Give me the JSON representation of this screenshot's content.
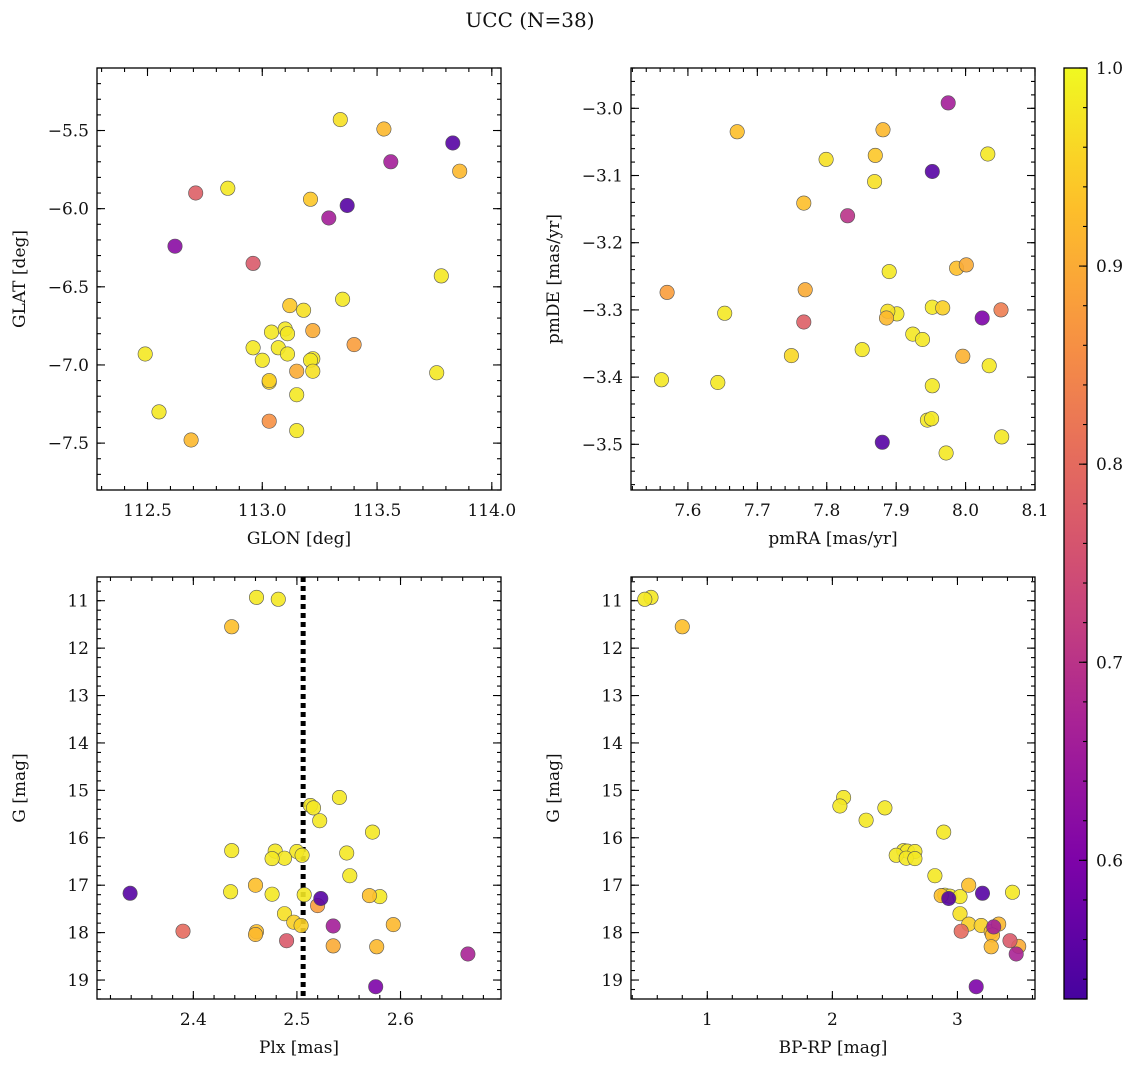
{
  "chart_data": {
    "type": "scatter",
    "title": "UCC (N=38)",
    "colorbar": {
      "range": [
        0.53,
        1.0
      ],
      "ticks": [
        "0.6",
        "0.7",
        "0.8",
        "0.9",
        "1.0"
      ],
      "tick_values": [
        0.6,
        0.7,
        0.8,
        0.9,
        1.0
      ],
      "colormap": "plasma",
      "placement": "right"
    },
    "panels": [
      {
        "id": "glon-glat",
        "xlabel": "GLON [deg]",
        "ylabel": "GLAT [deg]",
        "xlim": [
          112.28,
          114.04
        ],
        "ylim": [
          -7.8,
          -5.1
        ],
        "y_inverted": false,
        "xticks": [
          112.5,
          113.0,
          113.5,
          114.0
        ],
        "xtick_labels": [
          "112.5",
          "113.0",
          "113.5",
          "114.0"
        ],
        "yticks": [
          -7.5,
          -7.0,
          -6.5,
          -6.0,
          -5.5
        ],
        "ytick_labels": [
          "−7.5",
          "−7.0",
          "−6.5",
          "−6.0",
          "−5.5"
        ],
        "points": [
          {
            "x": 113.34,
            "y": -5.43,
            "c": 0.97
          },
          {
            "x": 113.53,
            "y": -5.49,
            "c": 0.92
          },
          {
            "x": 113.83,
            "y": -5.58,
            "c": 0.55
          },
          {
            "x": 113.56,
            "y": -5.7,
            "c": 0.66
          },
          {
            "x": 113.86,
            "y": -5.76,
            "c": 0.92
          },
          {
            "x": 112.85,
            "y": -5.87,
            "c": 0.98
          },
          {
            "x": 112.71,
            "y": -5.9,
            "c": 0.78
          },
          {
            "x": 113.21,
            "y": -5.94,
            "c": 0.94
          },
          {
            "x": 113.37,
            "y": -5.98,
            "c": 0.55
          },
          {
            "x": 113.29,
            "y": -6.06,
            "c": 0.66
          },
          {
            "x": 112.62,
            "y": -6.24,
            "c": 0.62
          },
          {
            "x": 112.96,
            "y": -6.35,
            "c": 0.77
          },
          {
            "x": 113.78,
            "y": -6.43,
            "c": 0.98
          },
          {
            "x": 113.35,
            "y": -6.58,
            "c": 0.98
          },
          {
            "x": 113.12,
            "y": -6.62,
            "c": 0.94
          },
          {
            "x": 113.18,
            "y": -6.65,
            "c": 0.97
          },
          {
            "x": 113.04,
            "y": -6.79,
            "c": 0.98
          },
          {
            "x": 113.1,
            "y": -6.77,
            "c": 0.98
          },
          {
            "x": 113.11,
            "y": -6.8,
            "c": 0.98
          },
          {
            "x": 113.22,
            "y": -6.78,
            "c": 0.9
          },
          {
            "x": 113.4,
            "y": -6.87,
            "c": 0.88
          },
          {
            "x": 112.96,
            "y": -6.89,
            "c": 0.98
          },
          {
            "x": 113.07,
            "y": -6.89,
            "c": 0.98
          },
          {
            "x": 112.49,
            "y": -6.93,
            "c": 0.98
          },
          {
            "x": 113.11,
            "y": -6.93,
            "c": 0.98
          },
          {
            "x": 113.22,
            "y": -6.96,
            "c": 0.98
          },
          {
            "x": 113.21,
            "y": -6.97,
            "c": 0.98
          },
          {
            "x": 113.0,
            "y": -6.97,
            "c": 0.98
          },
          {
            "x": 113.15,
            "y": -7.04,
            "c": 0.9
          },
          {
            "x": 113.22,
            "y": -7.04,
            "c": 0.97
          },
          {
            "x": 113.76,
            "y": -7.05,
            "c": 0.98
          },
          {
            "x": 113.03,
            "y": -7.11,
            "c": 0.96
          },
          {
            "x": 113.03,
            "y": -7.1,
            "c": 0.95
          },
          {
            "x": 113.15,
            "y": -7.19,
            "c": 0.98
          },
          {
            "x": 112.55,
            "y": -7.3,
            "c": 0.98
          },
          {
            "x": 113.03,
            "y": -7.36,
            "c": 0.86
          },
          {
            "x": 113.15,
            "y": -7.42,
            "c": 0.98
          },
          {
            "x": 112.69,
            "y": -7.48,
            "c": 0.92
          }
        ]
      },
      {
        "id": "pmra-pmde",
        "xlabel": "pmRA [mas/yr]",
        "ylabel": "pmDE [mas/yr]",
        "xlim": [
          7.518,
          8.1
        ],
        "ylim": [
          -3.568,
          -2.94
        ],
        "y_inverted": false,
        "xticks": [
          7.6,
          7.7,
          7.8,
          7.9,
          8.0,
          8.1
        ],
        "xtick_labels": [
          "7.6",
          "7.7",
          "7.8",
          "7.9",
          "8.0",
          "8.1"
        ],
        "yticks": [
          -3.5,
          -3.4,
          -3.3,
          -3.2,
          -3.1,
          -3.0
        ],
        "ytick_labels": [
          "−3.5",
          "−3.4",
          "−3.3",
          "−3.2",
          "−3.1",
          "−3.0"
        ],
        "points": [
          {
            "x": 7.975,
            "y": -2.992,
            "c": 0.66
          },
          {
            "x": 7.671,
            "y": -3.035,
            "c": 0.93
          },
          {
            "x": 7.881,
            "y": -3.032,
            "c": 0.92
          },
          {
            "x": 7.87,
            "y": -3.07,
            "c": 0.94
          },
          {
            "x": 8.032,
            "y": -3.068,
            "c": 0.98
          },
          {
            "x": 7.799,
            "y": -3.076,
            "c": 0.97
          },
          {
            "x": 7.952,
            "y": -3.094,
            "c": 0.55
          },
          {
            "x": 7.869,
            "y": -3.109,
            "c": 0.97
          },
          {
            "x": 7.767,
            "y": -3.141,
            "c": 0.93
          },
          {
            "x": 7.83,
            "y": -3.16,
            "c": 0.7
          },
          {
            "x": 8.001,
            "y": -3.233,
            "c": 0.9
          },
          {
            "x": 7.987,
            "y": -3.238,
            "c": 0.93
          },
          {
            "x": 7.89,
            "y": -3.243,
            "c": 0.98
          },
          {
            "x": 7.57,
            "y": -3.274,
            "c": 0.88
          },
          {
            "x": 7.769,
            "y": -3.27,
            "c": 0.9
          },
          {
            "x": 7.952,
            "y": -3.296,
            "c": 0.98
          },
          {
            "x": 7.967,
            "y": -3.297,
            "c": 0.95
          },
          {
            "x": 8.051,
            "y": -3.3,
            "c": 0.83
          },
          {
            "x": 7.888,
            "y": -3.302,
            "c": 0.97
          },
          {
            "x": 7.653,
            "y": -3.305,
            "c": 0.98
          },
          {
            "x": 7.901,
            "y": -3.306,
            "c": 0.98
          },
          {
            "x": 7.886,
            "y": -3.312,
            "c": 0.92
          },
          {
            "x": 8.024,
            "y": -3.312,
            "c": 0.6
          },
          {
            "x": 7.767,
            "y": -3.318,
            "c": 0.78
          },
          {
            "x": 7.924,
            "y": -3.336,
            "c": 0.98
          },
          {
            "x": 7.938,
            "y": -3.344,
            "c": 0.98
          },
          {
            "x": 7.851,
            "y": -3.359,
            "c": 0.98
          },
          {
            "x": 7.749,
            "y": -3.368,
            "c": 0.96
          },
          {
            "x": 7.996,
            "y": -3.369,
            "c": 0.91
          },
          {
            "x": 8.034,
            "y": -3.383,
            "c": 0.98
          },
          {
            "x": 7.562,
            "y": -3.404,
            "c": 0.98
          },
          {
            "x": 7.643,
            "y": -3.408,
            "c": 0.98
          },
          {
            "x": 7.952,
            "y": -3.413,
            "c": 0.98
          },
          {
            "x": 7.945,
            "y": -3.464,
            "c": 0.98
          },
          {
            "x": 7.951,
            "y": -3.462,
            "c": 0.98
          },
          {
            "x": 8.052,
            "y": -3.489,
            "c": 0.98
          },
          {
            "x": 7.88,
            "y": -3.497,
            "c": 0.55
          },
          {
            "x": 7.972,
            "y": -3.513,
            "c": 0.98
          }
        ]
      },
      {
        "id": "plx-g",
        "xlabel": "Plx [mas]",
        "ylabel": "G [mag]",
        "xlim": [
          2.307,
          2.697
        ],
        "ylim": [
          10.5,
          19.4
        ],
        "y_inverted": true,
        "xticks": [
          2.4,
          2.5,
          2.6
        ],
        "xtick_labels": [
          "2.4",
          "2.5",
          "2.6"
        ],
        "yticks": [
          11,
          12,
          13,
          14,
          15,
          16,
          17,
          18,
          19
        ],
        "ytick_labels": [
          "11",
          "12",
          "13",
          "14",
          "15",
          "16",
          "17",
          "18",
          "19"
        ],
        "vline": {
          "x": 2.506,
          "style": "dotted"
        },
        "points": [
          {
            "x": 2.461,
            "y": 10.93,
            "c": 0.98
          },
          {
            "x": 2.482,
            "y": 10.97,
            "c": 0.98
          },
          {
            "x": 2.437,
            "y": 11.55,
            "c": 0.93
          },
          {
            "x": 2.541,
            "y": 15.15,
            "c": 0.98
          },
          {
            "x": 2.513,
            "y": 15.32,
            "c": 0.98
          },
          {
            "x": 2.516,
            "y": 15.37,
            "c": 0.98
          },
          {
            "x": 2.522,
            "y": 15.64,
            "c": 0.98
          },
          {
            "x": 2.573,
            "y": 15.88,
            "c": 0.98
          },
          {
            "x": 2.437,
            "y": 16.27,
            "c": 0.98
          },
          {
            "x": 2.479,
            "y": 16.28,
            "c": 0.98
          },
          {
            "x": 2.5,
            "y": 16.29,
            "c": 0.98
          },
          {
            "x": 2.548,
            "y": 16.32,
            "c": 0.98
          },
          {
            "x": 2.505,
            "y": 16.37,
            "c": 0.98
          },
          {
            "x": 2.488,
            "y": 16.43,
            "c": 0.98
          },
          {
            "x": 2.476,
            "y": 16.44,
            "c": 0.98
          },
          {
            "x": 2.551,
            "y": 16.8,
            "c": 0.98
          },
          {
            "x": 2.46,
            "y": 17.0,
            "c": 0.93
          },
          {
            "x": 2.339,
            "y": 17.17,
            "c": 0.55
          },
          {
            "x": 2.436,
            "y": 17.14,
            "c": 0.98
          },
          {
            "x": 2.476,
            "y": 17.19,
            "c": 0.98
          },
          {
            "x": 2.507,
            "y": 17.2,
            "c": 0.98
          },
          {
            "x": 2.57,
            "y": 17.22,
            "c": 0.93
          },
          {
            "x": 2.58,
            "y": 17.24,
            "c": 0.98
          },
          {
            "x": 2.523,
            "y": 17.28,
            "c": 0.55
          },
          {
            "x": 2.52,
            "y": 17.43,
            "c": 0.88
          },
          {
            "x": 2.488,
            "y": 17.6,
            "c": 0.97
          },
          {
            "x": 2.497,
            "y": 17.78,
            "c": 0.95
          },
          {
            "x": 2.504,
            "y": 17.85,
            "c": 0.95
          },
          {
            "x": 2.535,
            "y": 17.86,
            "c": 0.66
          },
          {
            "x": 2.593,
            "y": 17.83,
            "c": 0.92
          },
          {
            "x": 2.39,
            "y": 17.97,
            "c": 0.8
          },
          {
            "x": 2.461,
            "y": 17.98,
            "c": 0.93
          },
          {
            "x": 2.46,
            "y": 18.04,
            "c": 0.92
          },
          {
            "x": 2.49,
            "y": 18.17,
            "c": 0.77
          },
          {
            "x": 2.535,
            "y": 18.28,
            "c": 0.9
          },
          {
            "x": 2.577,
            "y": 18.3,
            "c": 0.92
          },
          {
            "x": 2.665,
            "y": 18.45,
            "c": 0.67
          },
          {
            "x": 2.576,
            "y": 19.14,
            "c": 0.6
          }
        ]
      },
      {
        "id": "bprp-g",
        "xlabel": "BP-RP [mag]",
        "ylabel": "G [mag]",
        "xlim": [
          0.39,
          3.62
        ],
        "ylim": [
          10.5,
          19.4
        ],
        "y_inverted": true,
        "xticks": [
          1,
          2,
          3
        ],
        "xtick_labels": [
          "1",
          "2",
          "3"
        ],
        "yticks": [
          11,
          12,
          13,
          14,
          15,
          16,
          17,
          18,
          19
        ],
        "ytick_labels": [
          "11",
          "12",
          "13",
          "14",
          "15",
          "16",
          "17",
          "18",
          "19"
        ],
        "points": [
          {
            "x": 0.55,
            "y": 10.93,
            "c": 0.98
          },
          {
            "x": 0.5,
            "y": 10.97,
            "c": 0.98
          },
          {
            "x": 0.8,
            "y": 11.55,
            "c": 0.93
          },
          {
            "x": 2.09,
            "y": 15.15,
            "c": 0.98
          },
          {
            "x": 2.06,
            "y": 15.33,
            "c": 0.98
          },
          {
            "x": 2.42,
            "y": 15.37,
            "c": 0.98
          },
          {
            "x": 2.27,
            "y": 15.63,
            "c": 0.98
          },
          {
            "x": 2.89,
            "y": 15.88,
            "c": 0.98
          },
          {
            "x": 2.57,
            "y": 16.27,
            "c": 0.98
          },
          {
            "x": 2.6,
            "y": 16.28,
            "c": 0.98
          },
          {
            "x": 2.66,
            "y": 16.29,
            "c": 0.98
          },
          {
            "x": 2.51,
            "y": 16.37,
            "c": 0.98
          },
          {
            "x": 2.59,
            "y": 16.43,
            "c": 0.98
          },
          {
            "x": 2.66,
            "y": 16.44,
            "c": 0.98
          },
          {
            "x": 2.82,
            "y": 16.8,
            "c": 0.98
          },
          {
            "x": 3.09,
            "y": 17.0,
            "c": 0.93
          },
          {
            "x": 3.2,
            "y": 17.17,
            "c": 0.55
          },
          {
            "x": 3.44,
            "y": 17.15,
            "c": 0.98
          },
          {
            "x": 2.87,
            "y": 17.22,
            "c": 0.93
          },
          {
            "x": 2.9,
            "y": 17.21,
            "c": 0.98
          },
          {
            "x": 2.94,
            "y": 17.23,
            "c": 0.98
          },
          {
            "x": 2.93,
            "y": 17.28,
            "c": 0.55
          },
          {
            "x": 3.02,
            "y": 17.24,
            "c": 0.98
          },
          {
            "x": 3.02,
            "y": 17.6,
            "c": 0.97
          },
          {
            "x": 3.09,
            "y": 17.82,
            "c": 0.95
          },
          {
            "x": 3.19,
            "y": 17.85,
            "c": 0.95
          },
          {
            "x": 3.33,
            "y": 17.82,
            "c": 0.92
          },
          {
            "x": 3.29,
            "y": 17.88,
            "c": 0.66
          },
          {
            "x": 3.03,
            "y": 17.97,
            "c": 0.8
          },
          {
            "x": 3.27,
            "y": 17.98,
            "c": 0.93
          },
          {
            "x": 3.28,
            "y": 18.05,
            "c": 0.92
          },
          {
            "x": 3.42,
            "y": 18.17,
            "c": 0.77
          },
          {
            "x": 3.49,
            "y": 18.29,
            "c": 0.9
          },
          {
            "x": 3.27,
            "y": 18.3,
            "c": 0.92
          },
          {
            "x": 3.47,
            "y": 18.45,
            "c": 0.67
          },
          {
            "x": 3.15,
            "y": 19.14,
            "c": 0.6
          }
        ]
      }
    ]
  }
}
